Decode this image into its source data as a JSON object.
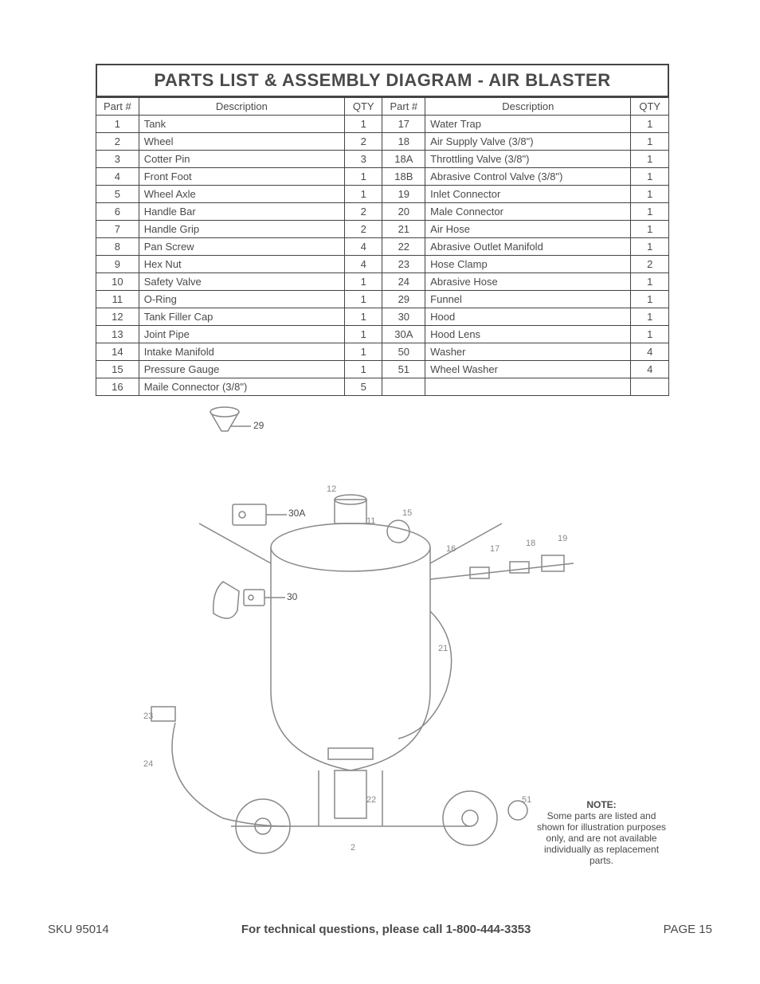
{
  "title": "PARTS LIST & ASSEMBLY DIAGRAM - AIR BLASTER",
  "table": {
    "headers": {
      "part": "Part #",
      "desc": "Description",
      "qty": "QTY"
    },
    "rows": [
      {
        "l_part": "1",
        "l_desc": "Tank",
        "l_qty": "1",
        "r_part": "17",
        "r_desc": "Water Trap",
        "r_qty": "1"
      },
      {
        "l_part": "2",
        "l_desc": "Wheel",
        "l_qty": "2",
        "r_part": "18",
        "r_desc": "Air Supply Valve (3/8\")",
        "r_qty": "1"
      },
      {
        "l_part": "3",
        "l_desc": "Cotter Pin",
        "l_qty": "3",
        "r_part": "18A",
        "r_desc": "Throttling Valve (3/8\")",
        "r_qty": "1"
      },
      {
        "l_part": "4",
        "l_desc": "Front Foot",
        "l_qty": "1",
        "r_part": "18B",
        "r_desc": "Abrasive Control Valve (3/8\")",
        "r_qty": "1"
      },
      {
        "l_part": "5",
        "l_desc": "Wheel Axle",
        "l_qty": "1",
        "r_part": "19",
        "r_desc": "Inlet Connector",
        "r_qty": "1"
      },
      {
        "l_part": "6",
        "l_desc": "Handle Bar",
        "l_qty": "2",
        "r_part": "20",
        "r_desc": "Male Connector",
        "r_qty": "1"
      },
      {
        "l_part": "7",
        "l_desc": "Handle Grip",
        "l_qty": "2",
        "r_part": "21",
        "r_desc": "Air Hose",
        "r_qty": "1"
      },
      {
        "l_part": "8",
        "l_desc": "Pan Screw",
        "l_qty": "4",
        "r_part": "22",
        "r_desc": "Abrasive Outlet Manifold",
        "r_qty": "1"
      },
      {
        "l_part": "9",
        "l_desc": "Hex Nut",
        "l_qty": "4",
        "r_part": "23",
        "r_desc": "Hose Clamp",
        "r_qty": "2"
      },
      {
        "l_part": "10",
        "l_desc": "Safety Valve",
        "l_qty": "1",
        "r_part": "24",
        "r_desc": "Abrasive Hose",
        "r_qty": "1"
      },
      {
        "l_part": "11",
        "l_desc": "O-Ring",
        "l_qty": "1",
        "r_part": "29",
        "r_desc": "Funnel",
        "r_qty": "1"
      },
      {
        "l_part": "12",
        "l_desc": "Tank Filler Cap",
        "l_qty": "1",
        "r_part": "30",
        "r_desc": "Hood",
        "r_qty": "1"
      },
      {
        "l_part": "13",
        "l_desc": "Joint Pipe",
        "l_qty": "1",
        "r_part": "30A",
        "r_desc": "Hood Lens",
        "r_qty": "1"
      },
      {
        "l_part": "14",
        "l_desc": "Intake Manifold",
        "l_qty": "1",
        "r_part": "50",
        "r_desc": "Washer",
        "r_qty": "4"
      },
      {
        "l_part": "15",
        "l_desc": "Pressure Gauge",
        "l_qty": "1",
        "r_part": "51",
        "r_desc": "Wheel Washer",
        "r_qty": "4"
      },
      {
        "l_part": "16",
        "l_desc": "Maile Connector (3/8\")",
        "l_qty": "5",
        "r_part": "",
        "r_desc": "",
        "r_qty": ""
      }
    ]
  },
  "callouts": {
    "c29": "29",
    "c30A": "30A",
    "c30": "30"
  },
  "note": {
    "heading": "NOTE:",
    "body": "Some parts are listed and shown for illustration purposes only, and are not available individually as replacement parts."
  },
  "footer": {
    "sku": "SKU 95014",
    "tech": "For technical questions, please call 1-800-444-3353",
    "page": "PAGE 15"
  }
}
